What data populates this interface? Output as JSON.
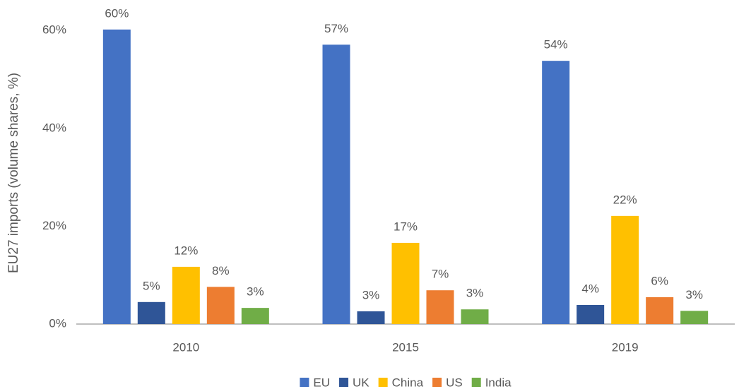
{
  "chart_data": {
    "type": "bar",
    "y_label": "EU27 imports (volume shares, %)",
    "categories": [
      "2010",
      "2015",
      "2019"
    ],
    "series": [
      {
        "name": "EU",
        "color": "#4472c4",
        "values": [
          60.2,
          57.1,
          53.8
        ],
        "value_labels": [
          "60%",
          "57%",
          "54%"
        ]
      },
      {
        "name": "UK",
        "color": "#2f5597",
        "values": [
          4.5,
          2.6,
          3.9
        ],
        "value_labels": [
          "5%",
          "3%",
          "4%"
        ]
      },
      {
        "name": "China",
        "color": "#ffc000",
        "values": [
          11.7,
          16.6,
          22.1
        ],
        "value_labels": [
          "12%",
          "17%",
          "22%"
        ]
      },
      {
        "name": "US",
        "color": "#ed7d31",
        "values": [
          7.6,
          6.9,
          5.5
        ],
        "value_labels": [
          "8%",
          "7%",
          "6%"
        ]
      },
      {
        "name": "India",
        "color": "#70ad47",
        "values": [
          3.3,
          3.0,
          2.7
        ],
        "value_labels": [
          "3%",
          "3%",
          "3%"
        ]
      }
    ],
    "ylim": [
      0,
      62
    ],
    "yticks": [
      {
        "value": 0,
        "label": "0%"
      },
      {
        "value": 20,
        "label": "20%"
      },
      {
        "value": 40,
        "label": "40%"
      },
      {
        "value": 60,
        "label": "60%"
      }
    ],
    "grid": false,
    "legend": "bottom"
  }
}
